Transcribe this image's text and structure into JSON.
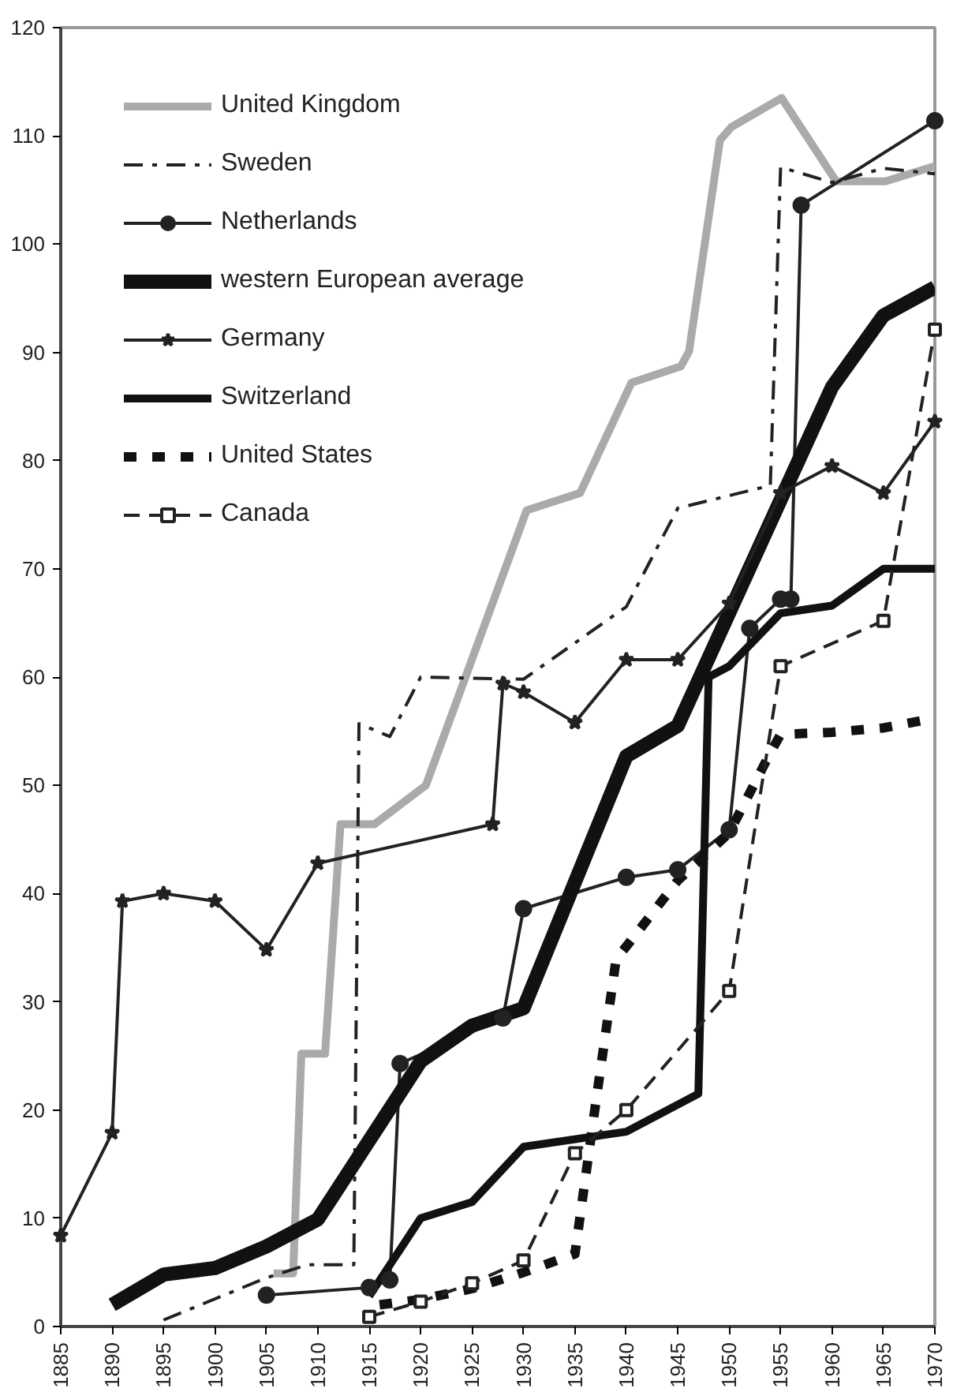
{
  "chart_data": {
    "type": "line",
    "xlim": [
      1885,
      1970
    ],
    "ylim": [
      0,
      120
    ],
    "xticks": [
      1885,
      1890,
      1895,
      1900,
      1905,
      1910,
      1915,
      1920,
      1925,
      1930,
      1935,
      1940,
      1945,
      1950,
      1955,
      1960,
      1965,
      1970
    ],
    "yticks": [
      0,
      10,
      20,
      30,
      40,
      50,
      60,
      70,
      80,
      90,
      100,
      110,
      120
    ],
    "grid": false,
    "legend": "top left",
    "series": [
      {
        "name": "United Kingdom",
        "color": "#aaaaaa",
        "line_style": "solid",
        "marker": "none",
        "x": [
          1905.7,
          1907.6,
          1908.4,
          1910.7,
          1912.2,
          1915.5,
          1920.5,
          1930.3,
          1935.5,
          1940.5,
          1945.3,
          1946.1,
          1949.1,
          1950.2,
          1955.1,
          1960.4,
          1965.2,
          1970
        ],
        "values": [
          4.9,
          4.9,
          25.2,
          25.2,
          46.4,
          46.4,
          50,
          75.4,
          77,
          87.2,
          88.7,
          90.1,
          109.6,
          110.8,
          113.5,
          105.8,
          105.8,
          107.2
        ]
      },
      {
        "name": "Sweden",
        "color": "#222222",
        "line_style": "dashdot",
        "marker": "none",
        "x": [
          1895,
          1905,
          1909,
          1913.5,
          1914,
          1917,
          1920,
          1930,
          1940,
          1945,
          1954,
          1955,
          1960,
          1965,
          1970
        ],
        "values": [
          0.6,
          4.5,
          5.7,
          5.7,
          55.7,
          54.5,
          60,
          59.8,
          66.5,
          75.6,
          77.7,
          107.1,
          105.7,
          107,
          106.5
        ]
      },
      {
        "name": "Netherlands",
        "color": "#222222",
        "line_style": "solid",
        "marker": "circle",
        "x": [
          1905,
          1915,
          1917,
          1918,
          1928,
          1930,
          1940,
          1945,
          1950,
          1952,
          1955,
          1956,
          1957,
          1970
        ],
        "values": [
          2.9,
          3.6,
          4.3,
          24.3,
          28.5,
          38.6,
          41.5,
          42.2,
          45.9,
          64.5,
          67.2,
          67.2,
          103.6,
          111.4
        ]
      },
      {
        "name": "western European average",
        "color": "#111111",
        "line_style": "solid",
        "marker": "none",
        "x": [
          1890,
          1895,
          1900,
          1905,
          1910,
          1920,
          1925,
          1930,
          1940,
          1945,
          1960,
          1965,
          1970
        ],
        "values": [
          2,
          4.8,
          5.4,
          7.4,
          9.9,
          24.5,
          27.8,
          29.4,
          52.7,
          55.5,
          86.8,
          93.4,
          96
        ]
      },
      {
        "name": "Germany",
        "color": "#222222",
        "line_style": "solid",
        "marker": "star",
        "x": [
          1885,
          1890,
          1891,
          1895,
          1900,
          1905,
          1910,
          1927,
          1928,
          1930,
          1935,
          1940,
          1945,
          1950,
          1955,
          1960,
          1965,
          1970
        ],
        "values": [
          8.4,
          17.9,
          39.3,
          40,
          39.3,
          34.8,
          42.8,
          46.4,
          59.4,
          58.6,
          55.8,
          61.6,
          61.6,
          66.8,
          77,
          79.5,
          77,
          83.6
        ]
      },
      {
        "name": "Switzerland",
        "color": "#111111",
        "line_style": "solid",
        "marker": "none",
        "x": [
          1915,
          1920,
          1925,
          1930,
          1940,
          1947,
          1948,
          1950,
          1955,
          1960,
          1965,
          1970
        ],
        "values": [
          2.8,
          10,
          11.5,
          16.6,
          18,
          21.5,
          60,
          61,
          65.9,
          66.6,
          70,
          70
        ]
      },
      {
        "name": "United States",
        "color": "#111111",
        "line_style": "dotted",
        "marker": "none",
        "x": [
          1916,
          1920,
          1925,
          1930,
          1935,
          1937,
          1939,
          1945,
          1950,
          1954,
          1955,
          1960,
          1965,
          1970
        ],
        "values": [
          2,
          2.5,
          3.5,
          5,
          6.7,
          20.5,
          33.9,
          41.2,
          45.6,
          53,
          54.7,
          54.9,
          55.3,
          56.2
        ]
      },
      {
        "name": "Canada",
        "color": "#222222",
        "line_style": "dashed",
        "marker": "square",
        "x": [
          1915,
          1920,
          1925,
          1930,
          1935,
          1940,
          1950,
          1955,
          1965,
          1970
        ],
        "values": [
          0.9,
          2.3,
          4,
          6.1,
          16,
          20,
          31,
          61,
          65.2,
          92.1
        ]
      }
    ]
  }
}
